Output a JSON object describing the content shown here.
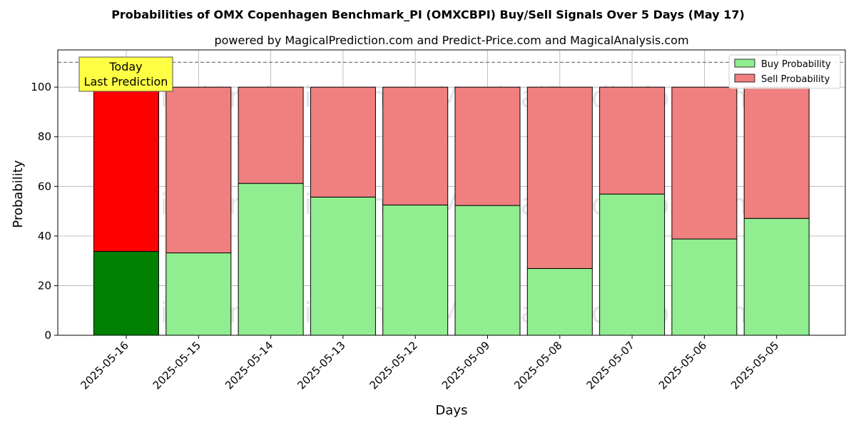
{
  "chart_data": {
    "type": "bar",
    "stacked": true,
    "title": "Probabilities of OMX Copenhagen Benchmark_PI (OMXCBPI) Buy/Sell Signals Over 5 Days (May 17)",
    "subtitle": "powered by MagicalPrediction.com and Predict-Price.com and MagicalAnalysis.com",
    "xlabel": "Days",
    "ylabel": "Probability",
    "ylim": [
      0,
      115
    ],
    "yticks": [
      0,
      20,
      40,
      60,
      80,
      100
    ],
    "reference_line": 110,
    "grid": true,
    "legend_position": "top-right",
    "categories": [
      "2025-05-16",
      "2025-05-15",
      "2025-05-14",
      "2025-05-13",
      "2025-05-12",
      "2025-05-09",
      "2025-05-08",
      "2025-05-07",
      "2025-05-06",
      "2025-05-05"
    ],
    "series": [
      {
        "name": "Buy Probability",
        "color": "#90ee90",
        "highlight_color": "#008000",
        "values": [
          33.8,
          33.2,
          61.2,
          55.7,
          52.5,
          52.3,
          26.9,
          56.9,
          38.8,
          47.1
        ]
      },
      {
        "name": "Sell Probability",
        "color": "#f08080",
        "highlight_color": "#ff0000",
        "values": [
          66.2,
          66.8,
          38.8,
          44.3,
          47.5,
          47.7,
          73.1,
          43.1,
          61.2,
          52.9
        ]
      }
    ],
    "annotation": {
      "lines": [
        "Today",
        "Last Prediction"
      ],
      "color": "#ffff44"
    },
    "watermarks": [
      "MagicalAnalysis.com",
      "MagicalPrediction.com"
    ]
  }
}
